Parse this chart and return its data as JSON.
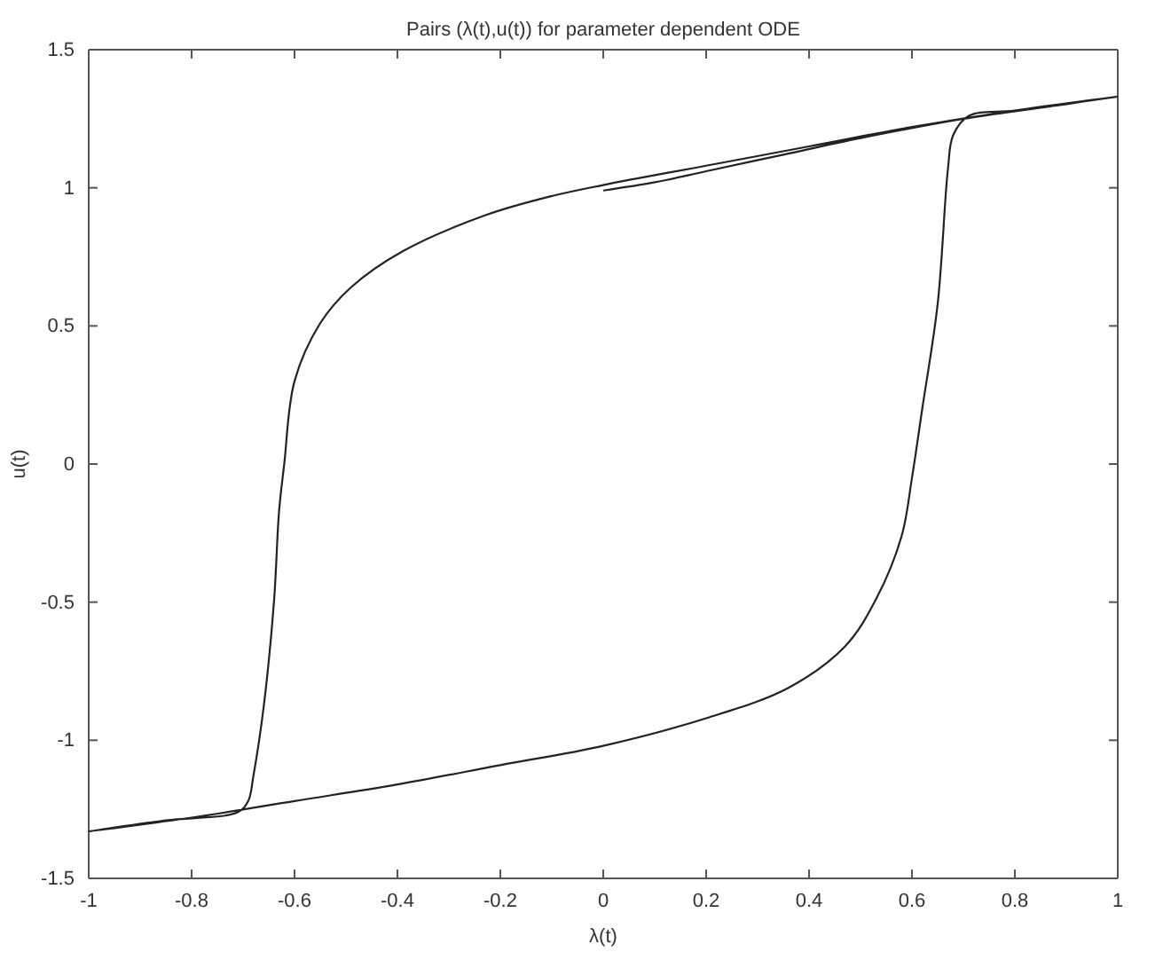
{
  "chart_data": {
    "type": "line",
    "title": "Pairs (λ(t),u(t)) for parameter dependent ODE",
    "xlabel": "λ(t)",
    "ylabel": "u(t)",
    "xlim": [
      -1,
      1
    ],
    "ylim": [
      -1.5,
      1.5
    ],
    "xticks": [
      -1,
      -0.8,
      -0.6,
      -0.4,
      -0.2,
      0,
      0.2,
      0.4,
      0.6,
      0.8,
      1
    ],
    "yticks": [
      -1.5,
      -1,
      -0.5,
      0,
      0.5,
      1,
      1.5
    ],
    "grid": false,
    "marker": "none",
    "line_style": "solid",
    "series": [
      {
        "color": "#222222",
        "x": [
          0,
          0.1,
          0.2,
          0.35,
          0.5,
          0.7,
          0.85,
          1,
          0.8,
          0.6,
          0.4,
          0.2,
          0,
          -0.1,
          -0.23,
          -0.39,
          -0.49,
          -0.55,
          -0.6,
          -0.62,
          -0.63,
          -0.64,
          -0.66,
          -0.68,
          -0.69,
          -0.71,
          -0.85,
          -1,
          -0.8,
          -0.6,
          -0.4,
          -0.2,
          0,
          0.2,
          0.36,
          0.47,
          0.53,
          0.58,
          0.6,
          0.62,
          0.65,
          0.67,
          0.68,
          0.71,
          0.8,
          1
        ],
        "values": [
          0.99,
          1.02,
          1.06,
          1.12,
          1.18,
          1.25,
          1.29,
          1.33,
          1.28,
          1.22,
          1.15,
          1.08,
          1.01,
          0.97,
          0.9,
          0.77,
          0.64,
          0.51,
          0.3,
          0,
          -0.17,
          -0.5,
          -0.88,
          -1.13,
          -1.22,
          -1.26,
          -1.29,
          -1.33,
          -1.28,
          -1.22,
          -1.16,
          -1.09,
          -1.02,
          -0.92,
          -0.81,
          -0.66,
          -0.49,
          -0.26,
          -0.05,
          0.2,
          0.58,
          1.07,
          1.19,
          1.26,
          1.28,
          1.33
        ]
      }
    ]
  }
}
